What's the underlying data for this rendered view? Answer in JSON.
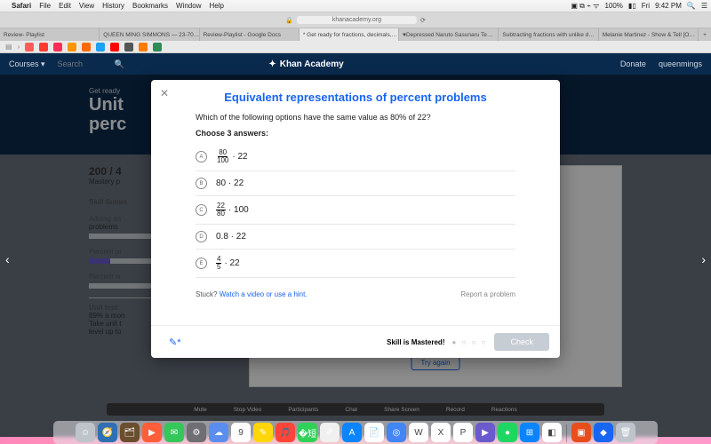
{
  "menubar": {
    "app": "Safari",
    "items": [
      "File",
      "Edit",
      "View",
      "History",
      "Bookmarks",
      "Window",
      "Help"
    ],
    "battery": "100%",
    "day": "Fri",
    "time": "9:42 PM"
  },
  "browser": {
    "url": "khanacademy.org",
    "tabs": [
      {
        "label": "Review- Playlist"
      },
      {
        "label": "QUEEN MING SIMMONS — 23-70…"
      },
      {
        "label": "Review-Playlist - Google Docs"
      },
      {
        "label": "* Get ready for fractions, decimals,…",
        "active": true
      },
      {
        "label": "♥Depressed Naruto Sasunaru Te…"
      },
      {
        "label": "Subtracting fractions with unlike d…"
      },
      {
        "label": "Melanie Martinez - Show & Tell [O…"
      }
    ],
    "bookmark_colors": [
      "#ff5b5b",
      "#ff3b30",
      "#ff2d55",
      "#ff9500",
      "#ff6a00",
      "#1da1f2",
      "#ff0000",
      "#555",
      "#ff7a00",
      "#2e8b57"
    ]
  },
  "ka_header": {
    "courses": "Courses",
    "search": "Search",
    "brand": "Khan Academy",
    "donate": "Donate",
    "user": "queenmings"
  },
  "bg": {
    "pre": "Get ready",
    "title_l1": "Unit",
    "title_l2": "perc",
    "score": "200 / 4",
    "mastery": "Mastery p",
    "skill": "Skill Summ",
    "s1": "Adding an",
    "s1b": "problems",
    "s2": "Percent pr",
    "s3": "Percent w",
    "ut": "Unit test",
    "ut2": "89% a mon",
    "ut3": "Take unit t",
    "ut4": "level up to",
    "try": "Try again"
  },
  "modal": {
    "title": "Equivalent representations of percent problems",
    "question_pre": "Which of the following options have the same value as ",
    "question_pct": "80%",
    "question_of": " of ",
    "question_val": "22",
    "question_q": "?",
    "instr": "Choose 3 answers:",
    "opts": [
      {
        "letter": "A",
        "type": "frac_times",
        "num": "80",
        "den": "100",
        "times": "22"
      },
      {
        "letter": "B",
        "type": "plain",
        "text": "80 · 22"
      },
      {
        "letter": "C",
        "type": "frac_times",
        "num": "22",
        "den": "80",
        "times": "100"
      },
      {
        "letter": "D",
        "type": "plain",
        "text": "0.8 · 22"
      },
      {
        "letter": "E",
        "type": "frac_times",
        "num": "4",
        "den": "5",
        "times": "22"
      }
    ],
    "stuck": "Stuck?",
    "hint": "Watch a video or use a hint.",
    "report": "Report a problem",
    "mastered": "Skill is Mastered!",
    "check": "Check"
  },
  "zoom": {
    "items": [
      "Mute",
      "Stop Video",
      "Participants",
      "Chat",
      "Share Screen",
      "Record",
      "Reactions"
    ]
  },
  "dock_icons": [
    {
      "c": "#bfc4cc",
      "t": "☺"
    },
    {
      "c": "#2f6fb3",
      "t": "🧭"
    },
    {
      "c": "#6b4e2e",
      "t": "🗂"
    },
    {
      "c": "#ff5e3a",
      "t": "▶"
    },
    {
      "c": "#34c759",
      "t": "✉"
    },
    {
      "c": "#6e6e73",
      "t": "⚙"
    },
    {
      "c": "#5b8def",
      "t": "☁"
    },
    {
      "c": "#ffffff",
      "t": "9"
    },
    {
      "c": "#ffd60a",
      "t": "✎"
    },
    {
      "c": "#ff453a",
      "t": "🎵"
    },
    {
      "c": "#30d158",
      "t": "�短"
    },
    {
      "c": "#f0f0f0",
      "t": "✐"
    },
    {
      "c": "#0a84ff",
      "t": "A"
    },
    {
      "c": "#ffffff",
      "t": "📄"
    },
    {
      "c": "#4285f4",
      "t": "◎"
    },
    {
      "c": "#ffffff",
      "t": "W"
    },
    {
      "c": "#ffffff",
      "t": "X"
    },
    {
      "c": "#ffffff",
      "t": "P"
    },
    {
      "c": "#6a5acd",
      "t": "▶"
    },
    {
      "c": "#1ed760",
      "t": "●"
    },
    {
      "c": "#0a84ff",
      "t": "⊞"
    },
    {
      "c": "#ffffff",
      "t": "◧"
    },
    {
      "c": "#e84e1b",
      "t": "▣"
    },
    {
      "c": "#1865f2",
      "t": "◆"
    },
    {
      "c": "#bfc4cc",
      "t": "🗑"
    }
  ]
}
